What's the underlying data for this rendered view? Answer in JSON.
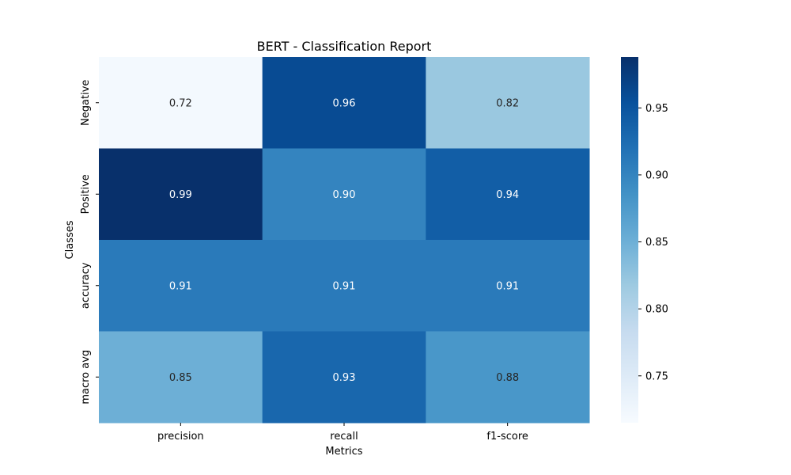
{
  "chart_data": {
    "type": "heatmap",
    "title": "BERT - Classification Report",
    "xlabel": "Metrics",
    "ylabel": "Classes",
    "x_categories": [
      "precision",
      "recall",
      "f1-score"
    ],
    "y_categories": [
      "Negative",
      "Positive",
      "accuracy",
      "macro avg"
    ],
    "values": [
      [
        0.72,
        0.96,
        0.82
      ],
      [
        0.99,
        0.9,
        0.94
      ],
      [
        0.91,
        0.91,
        0.91
      ],
      [
        0.85,
        0.93,
        0.88
      ]
    ],
    "value_labels": [
      [
        "0.72",
        "0.96",
        "0.82"
      ],
      [
        "0.99",
        "0.90",
        "0.94"
      ],
      [
        "0.91",
        "0.91",
        "0.91"
      ],
      [
        "0.85",
        "0.93",
        "0.88"
      ]
    ],
    "colormap": "Blues",
    "color_range": [
      0.715,
      0.988
    ],
    "colorbar_ticks": [
      0.75,
      0.8,
      0.85,
      0.9,
      0.95
    ],
    "colorbar_tick_labels": [
      "0.75",
      "0.80",
      "0.85",
      "0.90",
      "0.95"
    ],
    "grid": false,
    "legend": "colorbar-right"
  }
}
